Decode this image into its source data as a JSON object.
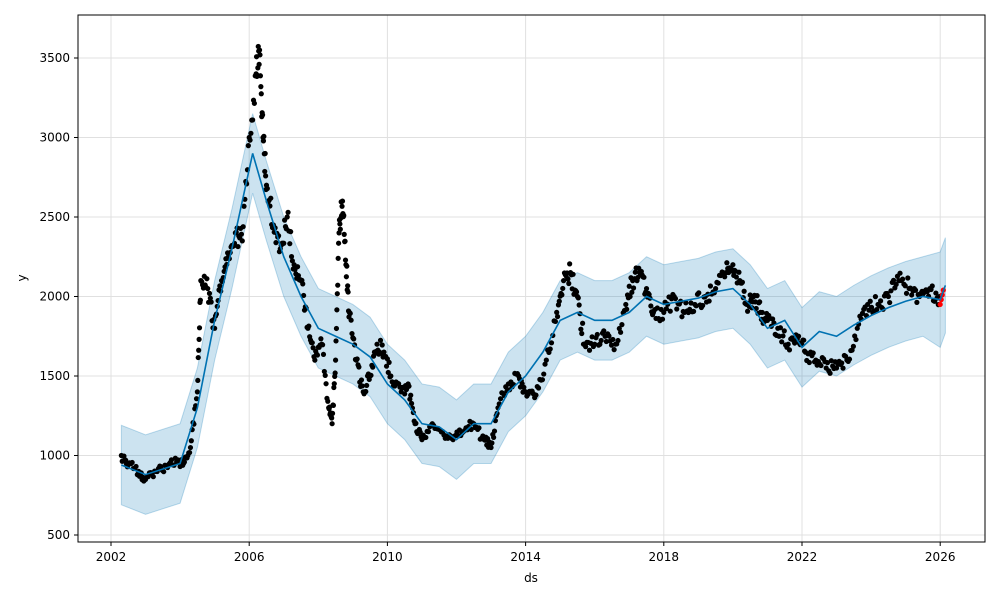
{
  "chart_data": {
    "type": "line",
    "title": "",
    "xlabel": "ds",
    "ylabel": "y",
    "xlim": [
      2001.75,
      2027.25
    ],
    "ylim": [
      450,
      3770
    ],
    "xticks": [
      "2002",
      "2006",
      "2010",
      "2014",
      "2018",
      "2022",
      "2026"
    ],
    "yticks": [
      "500",
      "1000",
      "1500",
      "2000",
      "2500",
      "3000",
      "3500"
    ],
    "grid": true,
    "colors": {
      "forecast": "#0072B2",
      "band": "#0072B2",
      "actual": "#000000",
      "future": "#ff0000"
    },
    "actual": [
      [
        2002.3,
        1000
      ],
      [
        2002.5,
        950
      ],
      [
        2002.8,
        900
      ],
      [
        2003.0,
        850
      ],
      [
        2003.3,
        900
      ],
      [
        2003.6,
        930
      ],
      [
        2003.9,
        960
      ],
      [
        2004.1,
        950
      ],
      [
        2004.3,
        1050
      ],
      [
        2004.5,
        1400
      ],
      [
        2004.6,
        2100
      ],
      [
        2004.8,
        2050
      ],
      [
        2005.0,
        1800
      ],
      [
        2005.2,
        2100
      ],
      [
        2005.4,
        2250
      ],
      [
        2005.6,
        2400
      ],
      [
        2005.8,
        2350
      ],
      [
        2006.0,
        3000
      ],
      [
        2006.2,
        3400
      ],
      [
        2006.3,
        3550
      ],
      [
        2006.4,
        3000
      ],
      [
        2006.5,
        2700
      ],
      [
        2006.7,
        2450
      ],
      [
        2006.9,
        2300
      ],
      [
        2007.1,
        2500
      ],
      [
        2007.3,
        2200
      ],
      [
        2007.5,
        2100
      ],
      [
        2007.7,
        1800
      ],
      [
        2007.9,
        1600
      ],
      [
        2008.1,
        1700
      ],
      [
        2008.3,
        1300
      ],
      [
        2008.4,
        1200
      ],
      [
        2008.5,
        1600
      ],
      [
        2008.6,
        2400
      ],
      [
        2008.7,
        2600
      ],
      [
        2008.8,
        2200
      ],
      [
        2008.9,
        1900
      ],
      [
        2009.1,
        1600
      ],
      [
        2009.3,
        1400
      ],
      [
        2009.5,
        1500
      ],
      [
        2009.7,
        1700
      ],
      [
        2009.9,
        1650
      ],
      [
        2010.1,
        1500
      ],
      [
        2010.4,
        1400
      ],
      [
        2010.6,
        1450
      ],
      [
        2010.8,
        1200
      ],
      [
        2011.0,
        1100
      ],
      [
        2011.3,
        1200
      ],
      [
        2011.6,
        1150
      ],
      [
        2011.9,
        1100
      ],
      [
        2012.2,
        1150
      ],
      [
        2012.5,
        1200
      ],
      [
        2012.8,
        1100
      ],
      [
        2013.0,
        1050
      ],
      [
        2013.2,
        1300
      ],
      [
        2013.5,
        1450
      ],
      [
        2013.8,
        1500
      ],
      [
        2014.0,
        1400
      ],
      [
        2014.3,
        1380
      ],
      [
        2014.6,
        1600
      ],
      [
        2014.9,
        1900
      ],
      [
        2015.1,
        2100
      ],
      [
        2015.3,
        2150
      ],
      [
        2015.5,
        2000
      ],
      [
        2015.7,
        1700
      ],
      [
        2016.0,
        1700
      ],
      [
        2016.3,
        1750
      ],
      [
        2016.6,
        1700
      ],
      [
        2016.9,
        1950
      ],
      [
        2017.1,
        2100
      ],
      [
        2017.3,
        2150
      ],
      [
        2017.5,
        2050
      ],
      [
        2017.7,
        1900
      ],
      [
        2018.0,
        1900
      ],
      [
        2018.3,
        2000
      ],
      [
        2018.6,
        1900
      ],
      [
        2018.9,
        1950
      ],
      [
        2019.2,
        2000
      ],
      [
        2019.5,
        2050
      ],
      [
        2019.8,
        2150
      ],
      [
        2020.0,
        2200
      ],
      [
        2020.2,
        2100
      ],
      [
        2020.4,
        1950
      ],
      [
        2020.6,
        2000
      ],
      [
        2020.8,
        1900
      ],
      [
        2021.0,
        1850
      ],
      [
        2021.3,
        1800
      ],
      [
        2021.6,
        1700
      ],
      [
        2021.9,
        1750
      ],
      [
        2022.1,
        1650
      ],
      [
        2022.4,
        1600
      ],
      [
        2022.7,
        1550
      ],
      [
        2023.0,
        1550
      ],
      [
        2023.3,
        1600
      ],
      [
        2023.6,
        1800
      ],
      [
        2023.9,
        1950
      ],
      [
        2024.2,
        1950
      ],
      [
        2024.5,
        2000
      ],
      [
        2024.8,
        2100
      ],
      [
        2025.1,
        2050
      ],
      [
        2025.4,
        2000
      ],
      [
        2025.7,
        2050
      ],
      [
        2025.98,
        2000
      ]
    ],
    "future": [
      [
        2026.0,
        1950
      ],
      [
        2026.03,
        1980
      ],
      [
        2026.06,
        2010
      ],
      [
        2026.09,
        2040
      ]
    ],
    "forecast": [
      [
        2002.3,
        940
      ],
      [
        2003,
        880
      ],
      [
        2004,
        950
      ],
      [
        2004.5,
        1300
      ],
      [
        2005,
        1850
      ],
      [
        2005.5,
        2300
      ],
      [
        2006.1,
        2900
      ],
      [
        2006.5,
        2600
      ],
      [
        2007,
        2250
      ],
      [
        2007.5,
        2000
      ],
      [
        2008,
        1800
      ],
      [
        2008.5,
        1750
      ],
      [
        2009,
        1700
      ],
      [
        2009.5,
        1620
      ],
      [
        2010,
        1450
      ],
      [
        2010.5,
        1350
      ],
      [
        2011,
        1200
      ],
      [
        2011.5,
        1180
      ],
      [
        2012,
        1100
      ],
      [
        2012.5,
        1200
      ],
      [
        2013,
        1200
      ],
      [
        2013.5,
        1400
      ],
      [
        2014,
        1500
      ],
      [
        2014.5,
        1650
      ],
      [
        2015,
        1850
      ],
      [
        2015.5,
        1900
      ],
      [
        2016,
        1850
      ],
      [
        2016.5,
        1850
      ],
      [
        2017,
        1900
      ],
      [
        2017.5,
        2000
      ],
      [
        2018,
        1950
      ],
      [
        2018.5,
        1970
      ],
      [
        2019,
        1990
      ],
      [
        2019.5,
        2030
      ],
      [
        2020,
        2050
      ],
      [
        2020.5,
        1950
      ],
      [
        2021,
        1800
      ],
      [
        2021.5,
        1850
      ],
      [
        2022,
        1680
      ],
      [
        2022.5,
        1780
      ],
      [
        2023,
        1750
      ],
      [
        2023.5,
        1820
      ],
      [
        2024,
        1880
      ],
      [
        2024.5,
        1930
      ],
      [
        2025,
        1970
      ],
      [
        2025.5,
        2000
      ],
      [
        2026,
        1980
      ],
      [
        2026.15,
        2070
      ]
    ],
    "band_halfwidth": 250
  }
}
